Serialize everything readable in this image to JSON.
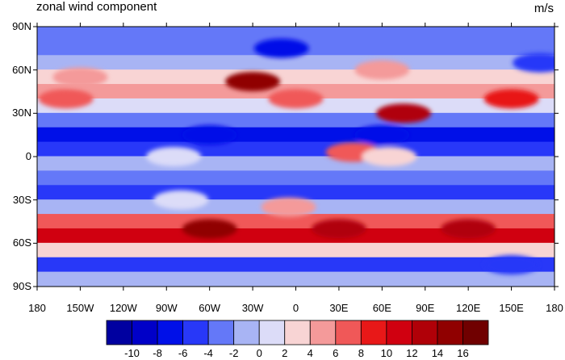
{
  "title": "zonal wind component",
  "units": "m/s",
  "y_ticks": [
    "90N",
    "60N",
    "30N",
    "0",
    "30S",
    "60S",
    "90S"
  ],
  "x_ticks": [
    "180",
    "150W",
    "120W",
    "90W",
    "60W",
    "30W",
    "0",
    "30E",
    "60E",
    "90E",
    "120E",
    "150E",
    "180"
  ],
  "colorbar": {
    "labels": [
      "-10",
      "-8",
      "-6",
      "-4",
      "-2",
      "0",
      "2",
      "4",
      "6",
      "8",
      "10",
      "12",
      "14",
      "16"
    ],
    "colors": [
      "#0000a0",
      "#0000c8",
      "#0010e8",
      "#2838f8",
      "#6478f8",
      "#a8b4f4",
      "#dcdcf8",
      "#f8d4d4",
      "#f49a9a",
      "#f05858",
      "#e81818",
      "#d00010",
      "#b00008",
      "#900000",
      "#700000"
    ]
  },
  "chart_data": {
    "type": "heatmap",
    "title": "zonal wind component",
    "units": "m/s",
    "xlim": [
      -180,
      180
    ],
    "ylim": [
      -90,
      90
    ],
    "zonal_bands": [
      {
        "lat": 85,
        "value": -3
      },
      {
        "lat": 75,
        "value": -4
      },
      {
        "lat": 65,
        "value": -1
      },
      {
        "lat": 55,
        "value": 3
      },
      {
        "lat": 45,
        "value": 4
      },
      {
        "lat": 35,
        "value": 0
      },
      {
        "lat": 25,
        "value": -3
      },
      {
        "lat": 15,
        "value": -7
      },
      {
        "lat": 5,
        "value": -5
      },
      {
        "lat": -5,
        "value": -2
      },
      {
        "lat": -15,
        "value": -4
      },
      {
        "lat": -25,
        "value": -6
      },
      {
        "lat": -35,
        "value": -1
      },
      {
        "lat": -45,
        "value": 6
      },
      {
        "lat": -55,
        "value": 11
      },
      {
        "lat": -65,
        "value": 3
      },
      {
        "lat": -75,
        "value": -5
      },
      {
        "lat": -85,
        "value": -2
      }
    ],
    "features": [
      {
        "lon": -30,
        "lat": 52,
        "value": 15
      },
      {
        "lon": 75,
        "lat": 30,
        "value": 12
      },
      {
        "lon": 150,
        "lat": 40,
        "value": 8
      },
      {
        "lon": -160,
        "lat": 40,
        "value": 6
      },
      {
        "lon": 0,
        "lat": 40,
        "value": 6
      },
      {
        "lon": -150,
        "lat": 55,
        "value": 4
      },
      {
        "lon": 60,
        "lat": 60,
        "value": 4
      },
      {
        "lon": -5,
        "lat": -35,
        "value": 4
      },
      {
        "lon": 40,
        "lat": 3,
        "value": 6
      },
      {
        "lon": 65,
        "lat": 0,
        "value": 3
      },
      {
        "lon": -60,
        "lat": -50,
        "value": 14
      },
      {
        "lon": 30,
        "lat": -50,
        "value": 12
      },
      {
        "lon": 120,
        "lat": -50,
        "value": 12
      },
      {
        "lon": -60,
        "lat": 15,
        "value": -8
      },
      {
        "lon": 60,
        "lat": 15,
        "value": -7
      },
      {
        "lon": 170,
        "lat": 65,
        "value": -6
      },
      {
        "lon": -10,
        "lat": 75,
        "value": -7
      },
      {
        "lon": 150,
        "lat": -75,
        "value": -6
      },
      {
        "lon": -85,
        "lat": 0,
        "value": 1
      },
      {
        "lon": -80,
        "lat": -30,
        "value": 1
      }
    ]
  }
}
